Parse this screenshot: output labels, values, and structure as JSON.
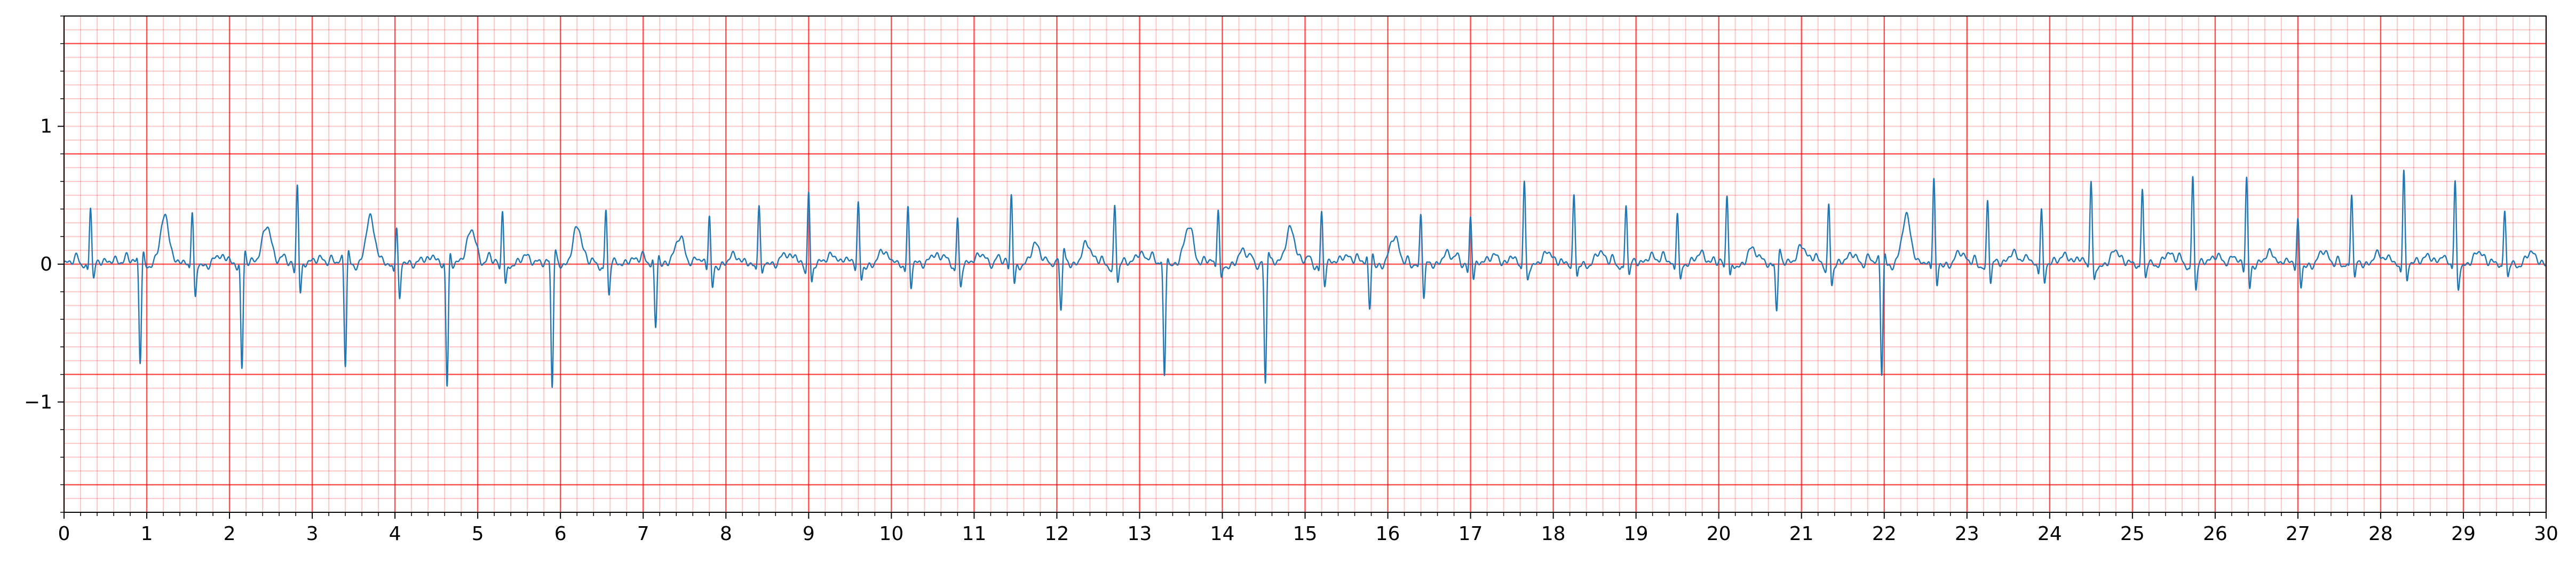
{
  "chart_data": {
    "type": "line",
    "title": "",
    "xlabel": "",
    "ylabel": "",
    "xlim": [
      0,
      30
    ],
    "ylim": [
      -1.8,
      1.8
    ],
    "x_ticks": [
      "0",
      "1",
      "2",
      "3",
      "4",
      "5",
      "6",
      "7",
      "8",
      "9",
      "10",
      "11",
      "12",
      "13",
      "14",
      "15",
      "16",
      "17",
      "18",
      "19",
      "20",
      "21",
      "22",
      "23",
      "24",
      "25",
      "26",
      "27",
      "28",
      "29",
      "30"
    ],
    "y_ticks": [
      {
        "value": 1,
        "label": "1"
      },
      {
        "value": 0,
        "label": "0"
      },
      {
        "value": -1,
        "label": "−1"
      }
    ],
    "grid": {
      "major_x": 1,
      "major_y": 0.8,
      "minor_x": 0.2,
      "minor_y": 0.1
    },
    "series": [
      {
        "color": "#1f77b4",
        "beats": [
          {
            "t": 0.32,
            "r": 0.45,
            "s": -0.12,
            "tw": 0.05
          },
          {
            "t": 0.92,
            "r": -0.7,
            "s": 0.1,
            "tw": 0.33
          },
          {
            "t": 1.55,
            "r": 0.37,
            "s": -0.28,
            "tw": 0.05
          },
          {
            "t": 2.15,
            "r": -0.76,
            "s": 0.1,
            "tw": 0.3
          },
          {
            "t": 2.82,
            "r": 0.61,
            "s": -0.22,
            "tw": 0.05
          },
          {
            "t": 3.4,
            "r": -0.74,
            "s": 0.1,
            "tw": 0.32
          },
          {
            "t": 4.02,
            "r": 0.28,
            "s": -0.3,
            "tw": 0.05
          },
          {
            "t": 4.63,
            "r": -0.87,
            "s": 0.1,
            "tw": 0.26
          },
          {
            "t": 5.3,
            "r": 0.42,
            "s": -0.15,
            "tw": 0.05
          },
          {
            "t": 5.9,
            "r": -0.92,
            "s": 0.1,
            "tw": 0.26
          },
          {
            "t": 6.55,
            "r": 0.4,
            "s": -0.25,
            "tw": 0.05
          },
          {
            "t": 7.15,
            "r": -0.45,
            "s": 0.1,
            "tw": 0.2
          },
          {
            "t": 7.8,
            "r": 0.36,
            "s": -0.18,
            "tw": 0.05
          },
          {
            "t": 8.4,
            "r": 0.43,
            "s": -0.12,
            "tw": 0.08
          },
          {
            "t": 9.0,
            "r": 0.55,
            "s": -0.15,
            "tw": 0.08
          },
          {
            "t": 9.6,
            "r": 0.43,
            "s": -0.12,
            "tw": 0.08
          },
          {
            "t": 10.2,
            "r": 0.4,
            "s": -0.2,
            "tw": 0.08
          },
          {
            "t": 10.8,
            "r": 0.36,
            "s": -0.16,
            "tw": 0.08
          },
          {
            "t": 11.45,
            "r": 0.52,
            "s": -0.14,
            "tw": 0.13
          },
          {
            "t": 12.05,
            "r": -0.35,
            "s": 0.1,
            "tw": 0.15
          },
          {
            "t": 12.7,
            "r": 0.43,
            "s": -0.15,
            "tw": 0.1
          },
          {
            "t": 13.3,
            "r": -0.82,
            "s": 0.1,
            "tw": 0.27
          },
          {
            "t": 13.95,
            "r": 0.41,
            "s": -0.13,
            "tw": 0.08
          },
          {
            "t": 14.52,
            "r": -0.86,
            "s": 0.1,
            "tw": 0.28
          },
          {
            "t": 15.2,
            "r": 0.4,
            "s": -0.15,
            "tw": 0.08
          },
          {
            "t": 15.78,
            "r": -0.35,
            "s": 0.1,
            "tw": 0.18
          },
          {
            "t": 16.4,
            "r": 0.37,
            "s": -0.28,
            "tw": 0.08
          },
          {
            "t": 17.0,
            "r": 0.37,
            "s": -0.1,
            "tw": 0.08
          },
          {
            "t": 17.65,
            "r": 0.62,
            "s": -0.12,
            "tw": 0.08
          },
          {
            "t": 18.25,
            "r": 0.48,
            "s": -0.12,
            "tw": 0.08
          },
          {
            "t": 18.88,
            "r": 0.45,
            "s": -0.1,
            "tw": 0.08
          },
          {
            "t": 19.5,
            "r": 0.42,
            "s": -0.12,
            "tw": 0.08
          },
          {
            "t": 20.1,
            "r": 0.5,
            "s": -0.12,
            "tw": 0.1
          },
          {
            "t": 20.7,
            "r": -0.35,
            "s": 0.1,
            "tw": 0.15
          },
          {
            "t": 21.33,
            "r": 0.45,
            "s": -0.15,
            "tw": 0.08
          },
          {
            "t": 21.97,
            "r": -0.79,
            "s": 0.1,
            "tw": 0.33
          },
          {
            "t": 22.6,
            "r": 0.61,
            "s": -0.2,
            "tw": 0.08
          },
          {
            "t": 23.25,
            "r": 0.47,
            "s": -0.16,
            "tw": 0.1
          },
          {
            "t": 23.9,
            "r": 0.43,
            "s": -0.15,
            "tw": 0.08
          },
          {
            "t": 24.5,
            "r": 0.61,
            "s": -0.14,
            "tw": 0.08
          },
          {
            "t": 25.12,
            "r": 0.53,
            "s": -0.13,
            "tw": 0.08
          },
          {
            "t": 25.73,
            "r": 0.67,
            "s": -0.2,
            "tw": 0.08
          },
          {
            "t": 26.38,
            "r": 0.65,
            "s": -0.18,
            "tw": 0.08
          },
          {
            "t": 27.0,
            "r": 0.3,
            "s": -0.18,
            "tw": 0.08
          },
          {
            "t": 27.65,
            "r": 0.52,
            "s": -0.14,
            "tw": 0.08
          },
          {
            "t": 28.28,
            "r": 0.71,
            "s": -0.15,
            "tw": 0.08
          },
          {
            "t": 28.9,
            "r": 0.61,
            "s": -0.18,
            "tw": 0.08
          },
          {
            "t": 29.5,
            "r": 0.37,
            "s": -0.12,
            "tw": 0.08
          }
        ]
      }
    ]
  }
}
